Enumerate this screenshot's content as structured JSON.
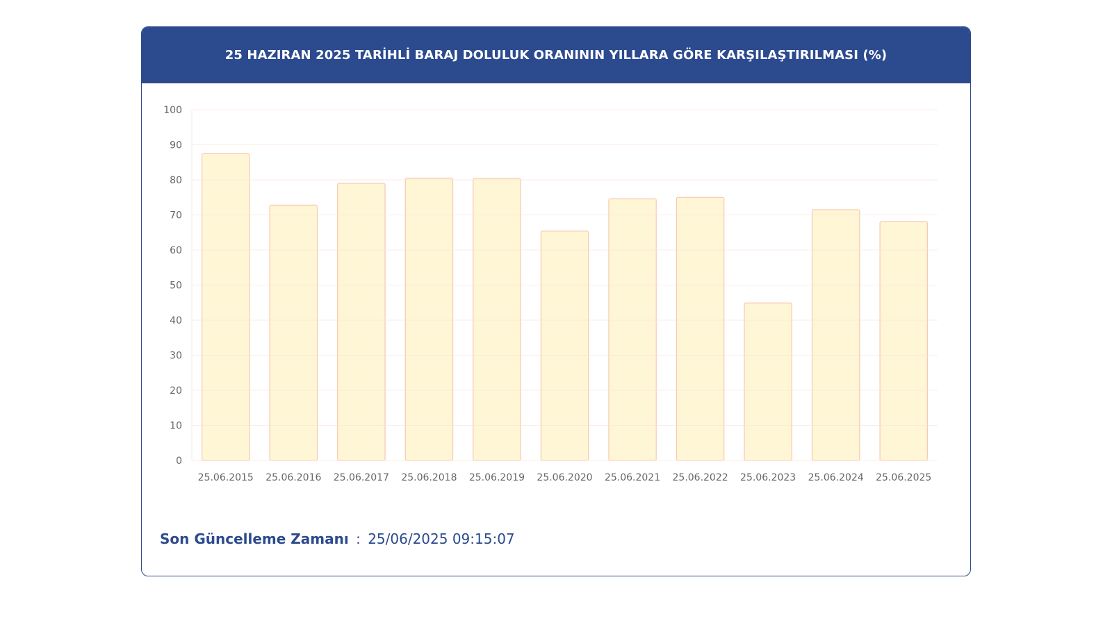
{
  "header": {
    "title": "25 HAZIRAN 2025 TARİHLİ BARAJ DOLULUK ORANININ YILLARA GÖRE KARŞILAŞTIRILMASI (%)"
  },
  "footer": {
    "label": "Son Güncelleme Zamanı",
    "separator": ":",
    "value": "25/06/2025 09:15:07"
  },
  "colors": {
    "header_bg": "#2c4a8e",
    "bar_fill": "#fff6d6",
    "bar_stroke": "#f7c9b0",
    "grid": "#fbe2d8"
  },
  "chart_data": {
    "type": "bar",
    "title": "25 HAZIRAN 2025 TARİHLİ BARAJ DOLULUK ORANININ YILLARA GÖRE KARŞILAŞTIRILMASI (%)",
    "categories": [
      "25.06.2015",
      "25.06.2016",
      "25.06.2017",
      "25.06.2018",
      "25.06.2019",
      "25.06.2020",
      "25.06.2021",
      "25.06.2022",
      "25.06.2023",
      "25.06.2024",
      "25.06.2025"
    ],
    "values": [
      87.5,
      72.8,
      79.0,
      80.5,
      80.4,
      65.4,
      74.6,
      75.0,
      44.9,
      71.5,
      68.1
    ],
    "yticks": [
      "0",
      "10",
      "20",
      "30",
      "40",
      "50",
      "60",
      "70",
      "80",
      "90",
      "100"
    ],
    "ylim": [
      0,
      100
    ],
    "grid": true,
    "legend": "none"
  }
}
